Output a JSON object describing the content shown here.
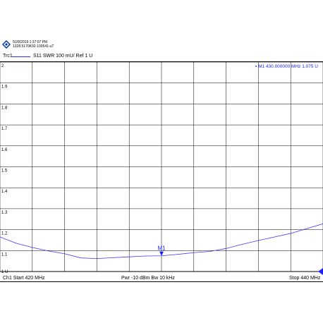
{
  "header": {
    "datetime": "5/28/2019 1:37:07 PM",
    "serial": "1328.5170K92-100541-uT",
    "trace_name": "Trc1",
    "trace_desc": "S11  SWR  100 mU/ Ref 1 U"
  },
  "marker": {
    "label": "M1",
    "readout": "▪ M1  430.000000  MHz  1.075 U",
    "freq": 430,
    "value": 1.075
  },
  "footer": {
    "start": "Ch1  Start  420 MHz",
    "power": "Pwr  -10 dBm  Bw  10 kHz",
    "stop": "Stop  440 MHz"
  },
  "colors": {
    "trace": "#3a3aff",
    "grid": "#000000"
  },
  "chart_data": {
    "type": "line",
    "title": "",
    "xlabel": "",
    "ylabel": "",
    "xlim": [
      420,
      440
    ],
    "ylim": [
      1,
      2
    ],
    "y_ticks": [
      "2",
      "1.9",
      "1.8",
      "1.7",
      "1.6",
      "1.5",
      "1.4",
      "1.3",
      "1.2",
      "1.1",
      "1 U"
    ],
    "y_tick_values": [
      2,
      1.9,
      1.8,
      1.7,
      1.6,
      1.5,
      1.4,
      1.3,
      1.2,
      1.1,
      1
    ],
    "grid": true,
    "series": [
      {
        "x": [
          420,
          421,
          422,
          423,
          424,
          425,
          426,
          427,
          428,
          429,
          430,
          431,
          432,
          433,
          434,
          435,
          436,
          437,
          438,
          439,
          440
        ],
        "values": [
          1.165,
          1.135,
          1.115,
          1.098,
          1.085,
          1.065,
          1.062,
          1.066,
          1.07,
          1.074,
          1.075,
          1.082,
          1.09,
          1.096,
          1.11,
          1.13,
          1.148,
          1.165,
          1.182,
          1.205,
          1.228
        ]
      }
    ]
  }
}
